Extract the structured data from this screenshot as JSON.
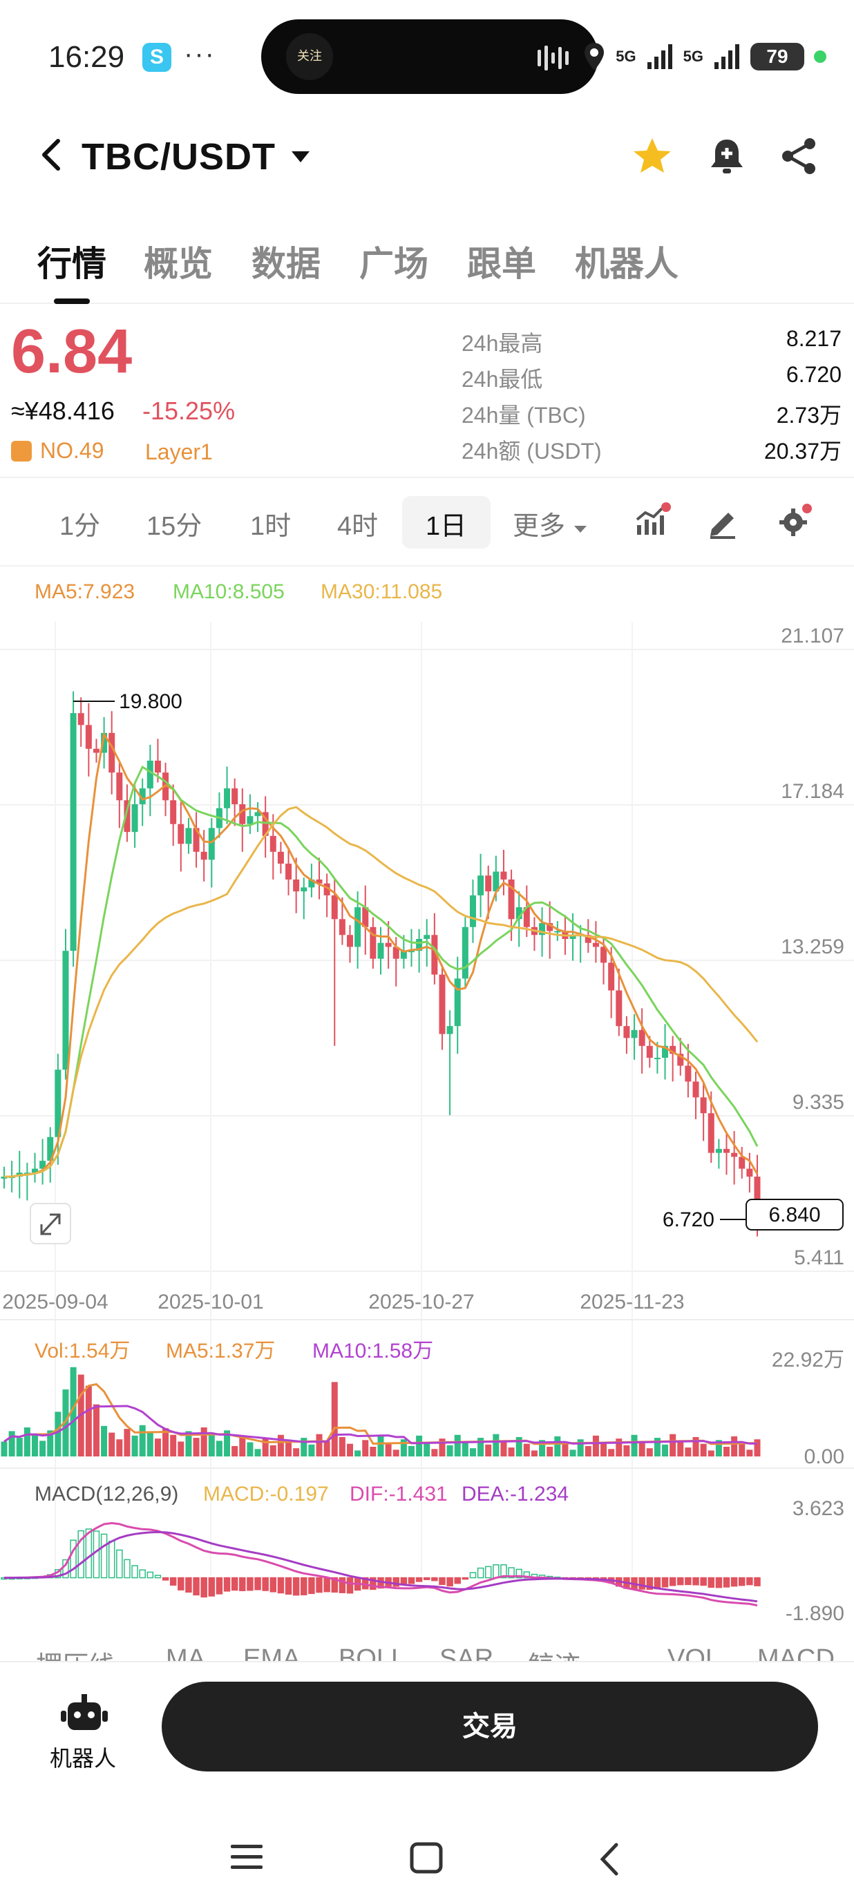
{
  "status_bar": {
    "time": "16:29",
    "dots": "···",
    "net1": "5G",
    "net2": "5G",
    "battery": "79",
    "island_logo": "关注"
  },
  "header": {
    "pair": "TBC/USDT"
  },
  "tabs": [
    "行情",
    "概览",
    "数据",
    "广场",
    "跟单",
    "机器人"
  ],
  "price": {
    "last": "6.84",
    "cny": "≈¥48.416",
    "change": "-15.25%",
    "rank": "NO.49",
    "category": "Layer1"
  },
  "stats": [
    {
      "label": "24h最高",
      "value": "8.217"
    },
    {
      "label": "24h最低",
      "value": "6.720"
    },
    {
      "label": "24h量 (TBC)",
      "value": "2.73万"
    },
    {
      "label": "24h额 (USDT)",
      "value": "20.37万"
    }
  ],
  "intervals": {
    "items": [
      "1分",
      "15分",
      "1时",
      "4时",
      "1日"
    ],
    "more": "更多",
    "active": "1日"
  },
  "ma_legend": {
    "ma5": "MA5:7.923",
    "ma10": "MA10:8.505",
    "ma30": "MA30:11.085"
  },
  "vol_legend": {
    "vol": "Vol:1.54万",
    "ma5": "MA5:1.37万",
    "ma10": "MA10:1.58万"
  },
  "macd_legend": {
    "name": "MACD(12,26,9)",
    "macd": "MACD:-0.197",
    "dif": "DIF:-1.431",
    "dea": "DEA:-1.234"
  },
  "chart_data": {
    "type": "candlestick",
    "y_axis_ticks": [
      "21.107",
      "17.184",
      "13.259",
      "9.335",
      "5.411"
    ],
    "x_axis_ticks": [
      "2025-09-04",
      "2025-10-01",
      "2025-10-27",
      "2025-11-23"
    ],
    "ylim": [
      5.411,
      21.107
    ],
    "high_marker": "19.800",
    "low_marker": "6.720",
    "last_price_tag": "6.840",
    "volume_axis": [
      "22.92万",
      "0.00"
    ],
    "macd_axis": [
      "3.623",
      "-1.890"
    ],
    "colors": {
      "up": "#2ebd85",
      "down": "#e0525e",
      "ma5": "#e8913a",
      "ma10": "#7ad45c",
      "ma30": "#e9b64a",
      "vma5": "#e8913a",
      "vma10": "#b142d0",
      "dif": "#d94bae",
      "dea": "#a53cc4"
    }
  },
  "indicators": [
    "摆压线",
    "MA",
    "EMA",
    "BOLL",
    "SAR",
    "鲸迹",
    "VOL",
    "MACD"
  ],
  "bottom": {
    "robot_label": "机器人",
    "trade_label": "交易"
  }
}
